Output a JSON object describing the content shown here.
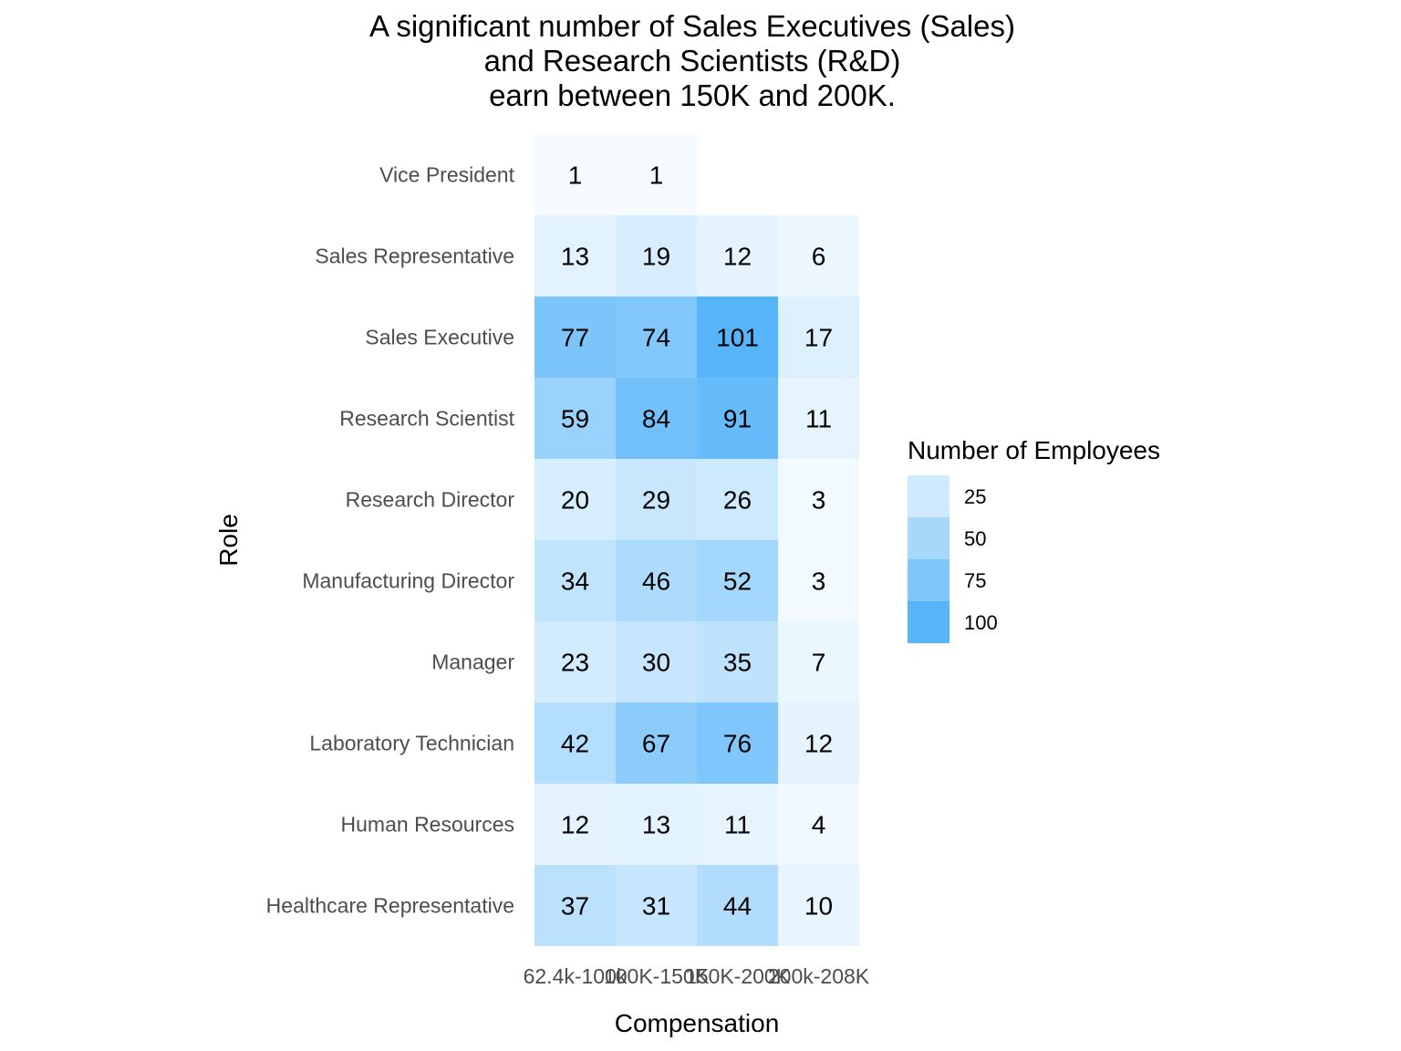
{
  "chart_data": {
    "type": "heatmap",
    "title": [
      "A significant number of Sales Executives (Sales)",
      "and Research Scientists (R&D)",
      "earn between 150K and 200K."
    ],
    "xlabel": "Compensation",
    "ylabel": "Role",
    "x_categories": [
      "62.4k-100k",
      "100K-150K",
      "150K-200K",
      "200k-208K"
    ],
    "y_categories": [
      "Healthcare Representative",
      "Human Resources",
      "Laboratory Technician",
      "Manager",
      "Manufacturing Director",
      "Research Director",
      "Research Scientist",
      "Sales Executive",
      "Sales Representative",
      "Vice President"
    ],
    "values": [
      [
        37,
        31,
        44,
        10
      ],
      [
        12,
        13,
        11,
        4
      ],
      [
        42,
        67,
        76,
        12
      ],
      [
        23,
        30,
        35,
        7
      ],
      [
        34,
        46,
        52,
        3
      ],
      [
        20,
        29,
        26,
        3
      ],
      [
        59,
        84,
        91,
        11
      ],
      [
        77,
        74,
        101,
        17
      ],
      [
        13,
        19,
        12,
        6
      ],
      [
        1,
        1,
        null,
        null
      ]
    ],
    "legend": {
      "title": "Number of Employees",
      "breaks": [
        25,
        50,
        75,
        100
      ],
      "position": "right"
    },
    "color_low": "#f5fbff",
    "color_high": "#56b4f9",
    "grid": false
  }
}
